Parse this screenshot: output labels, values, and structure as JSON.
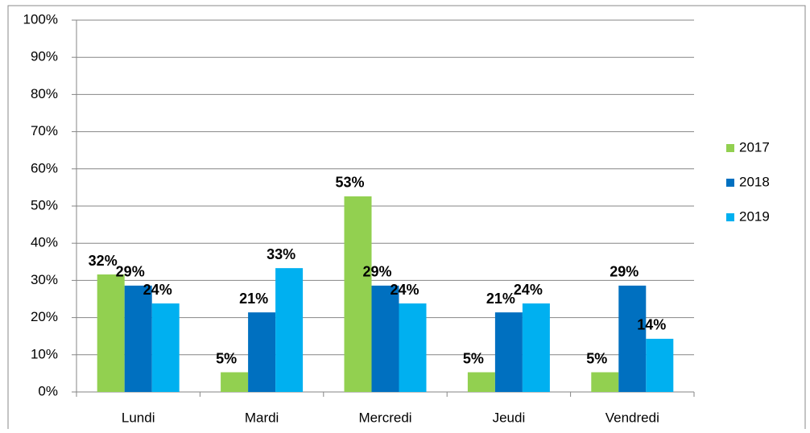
{
  "chart_data": {
    "type": "bar",
    "categories": [
      "Lundi",
      "Mardi",
      "Mercredi",
      "Jeudi",
      "Vendredi"
    ],
    "series": [
      {
        "name": "2017",
        "color": "#92d050",
        "values": [
          31.6,
          5.3,
          52.6,
          5.3,
          5.3
        ],
        "value_labels": [
          "32%",
          "5%",
          "53%",
          "5%",
          "5%"
        ]
      },
      {
        "name": "2018",
        "color": "#0070c0",
        "values": [
          28.6,
          21.4,
          28.6,
          21.4,
          28.6
        ],
        "value_labels": [
          "29%",
          "21%",
          "29%",
          "21%",
          "29%"
        ]
      },
      {
        "name": "2019",
        "color": "#00b0f0",
        "values": [
          23.8,
          33.3,
          23.8,
          23.8,
          14.3
        ],
        "value_labels": [
          "24%",
          "33%",
          "24%",
          "24%",
          "14%"
        ]
      }
    ],
    "ylim": [
      0,
      100
    ],
    "yticks": [
      {
        "value": 0,
        "label": "0%"
      },
      {
        "value": 10,
        "label": "10%"
      },
      {
        "value": 20,
        "label": "20%"
      },
      {
        "value": 30,
        "label": "30%"
      },
      {
        "value": 40,
        "label": "40%"
      },
      {
        "value": 50,
        "label": "50%"
      },
      {
        "value": 60,
        "label": "60%"
      },
      {
        "value": 70,
        "label": "70%"
      },
      {
        "value": 80,
        "label": "80%"
      },
      {
        "value": 90,
        "label": "90%"
      },
      {
        "value": 100,
        "label": "100%"
      }
    ],
    "grid": true,
    "legend": "right"
  }
}
